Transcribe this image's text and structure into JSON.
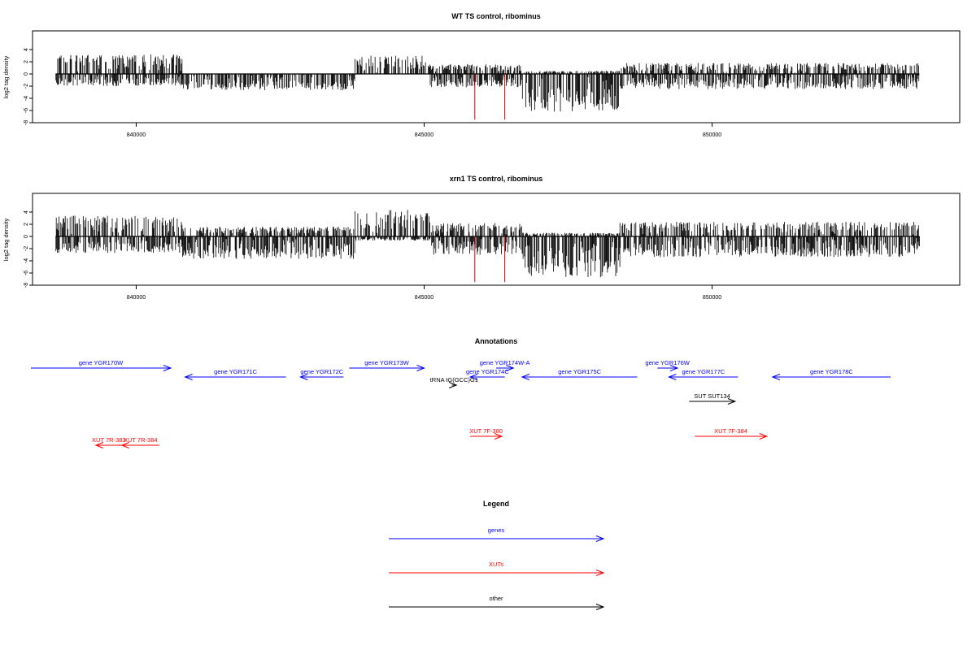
{
  "colors": {
    "gene": "#0000ff",
    "xut": "#ff0000",
    "other": "#000000",
    "bar": "#000000",
    "marker": "#cc0000"
  },
  "chart_data": [
    {
      "type": "bar",
      "title": "WT TS control, ribominus",
      "ylabel": "log2 tag density",
      "xlim": [
        838200,
        854300
      ],
      "ylim": [
        -8,
        6
      ],
      "yticks": [
        -8,
        -6,
        -4,
        -2,
        0,
        2,
        4
      ],
      "xticks": [
        840000,
        845000,
        850000
      ],
      "baseline": [
        838600,
        853600
      ],
      "red_markers": [
        845880,
        846400
      ],
      "seed": 7,
      "segments": [
        {
          "from": 838600,
          "to": 840800,
          "up": 3.0,
          "down": 1.8
        },
        {
          "from": 840800,
          "to": 843800,
          "up": 0.2,
          "down": 2.5
        },
        {
          "from": 843800,
          "to": 845100,
          "up": 2.8,
          "down": 0.2
        },
        {
          "from": 845100,
          "to": 846700,
          "up": 1.4,
          "down": 2.0
        },
        {
          "from": 846700,
          "to": 848400,
          "up": 0.3,
          "down": 6.0
        },
        {
          "from": 848400,
          "to": 853600,
          "up": 1.6,
          "down": 2.3
        }
      ]
    },
    {
      "type": "bar",
      "title": "xrn1 TS control, ribominus",
      "ylabel": "log2 tag density",
      "xlim": [
        838200,
        854300
      ],
      "ylim": [
        -8,
        6
      ],
      "yticks": [
        -8,
        -6,
        -4,
        -2,
        0,
        2,
        4
      ],
      "xticks": [
        840000,
        845000,
        850000
      ],
      "baseline": [
        838600,
        853600
      ],
      "red_markers": [
        845880,
        846400
      ],
      "seed": 13,
      "segments": [
        {
          "from": 838600,
          "to": 840800,
          "up": 3.2,
          "down": 2.5
        },
        {
          "from": 840800,
          "to": 843800,
          "up": 1.4,
          "down": 3.5
        },
        {
          "from": 843800,
          "to": 845100,
          "up": 4.2,
          "down": 0.5
        },
        {
          "from": 845100,
          "to": 846700,
          "up": 2.0,
          "down": 2.8
        },
        {
          "from": 846700,
          "to": 848400,
          "up": 0.4,
          "down": 6.5
        },
        {
          "from": 848400,
          "to": 853600,
          "up": 2.2,
          "down": 3.2
        }
      ]
    }
  ],
  "annotations": {
    "title": "Annotations",
    "features": [
      {
        "label": "gene YGR170W",
        "kind": "gene",
        "start": 837800,
        "end": 840600,
        "strand": "+",
        "track": 0
      },
      {
        "label": "gene YGR171C",
        "kind": "gene",
        "start": 840850,
        "end": 842600,
        "strand": "-",
        "track": 1
      },
      {
        "label": "gene YGR172C",
        "kind": "gene",
        "start": 842850,
        "end": 843600,
        "strand": "-",
        "track": 1
      },
      {
        "label": "gene YGR173W",
        "kind": "gene",
        "start": 843700,
        "end": 845000,
        "strand": "+",
        "track": 0
      },
      {
        "label": "gene YGR174W-A",
        "kind": "gene",
        "start": 846250,
        "end": 846550,
        "strand": "+",
        "track": 0
      },
      {
        "label": "gene YGR174C",
        "kind": "gene",
        "start": 845800,
        "end": 846400,
        "strand": "-",
        "track": 1
      },
      {
        "label": "gene YGR175C",
        "kind": "gene",
        "start": 846700,
        "end": 848700,
        "strand": "-",
        "track": 1
      },
      {
        "label": "gene YGR176W",
        "kind": "gene",
        "start": 849050,
        "end": 849400,
        "strand": "+",
        "track": 0
      },
      {
        "label": "gene YGR177C",
        "kind": "gene",
        "start": 849250,
        "end": 850450,
        "strand": "-",
        "track": 1
      },
      {
        "label": "gene YGR178C",
        "kind": "gene",
        "start": 851050,
        "end": 853100,
        "strand": "-",
        "track": 1
      },
      {
        "label": "tRNA tG(GCC)G1",
        "kind": "other",
        "start": 845480,
        "end": 845560,
        "strand": "+",
        "track": 2
      },
      {
        "label": "SUT SUT134",
        "kind": "other",
        "start": 849600,
        "end": 850400,
        "strand": "+",
        "track": 3
      },
      {
        "label": "XUT 7R-383",
        "kind": "xut",
        "start": 839300,
        "end": 839750,
        "strand": "-",
        "track": 4
      },
      {
        "label": "XUT 7R-384",
        "kind": "xut",
        "start": 839750,
        "end": 840400,
        "strand": "-",
        "track": 4
      },
      {
        "label": "XUT 7F-380",
        "kind": "xut",
        "start": 845800,
        "end": 846350,
        "strand": "+",
        "track": 5
      },
      {
        "label": "XUT 7F-384",
        "kind": "xut",
        "start": 849700,
        "end": 850950,
        "strand": "+",
        "track": 5
      }
    ]
  },
  "legend": {
    "title": "Legend",
    "items": [
      {
        "label": "genes",
        "kind": "gene"
      },
      {
        "label": "XUTs",
        "kind": "xut"
      },
      {
        "label": "other",
        "kind": "other"
      }
    ]
  }
}
